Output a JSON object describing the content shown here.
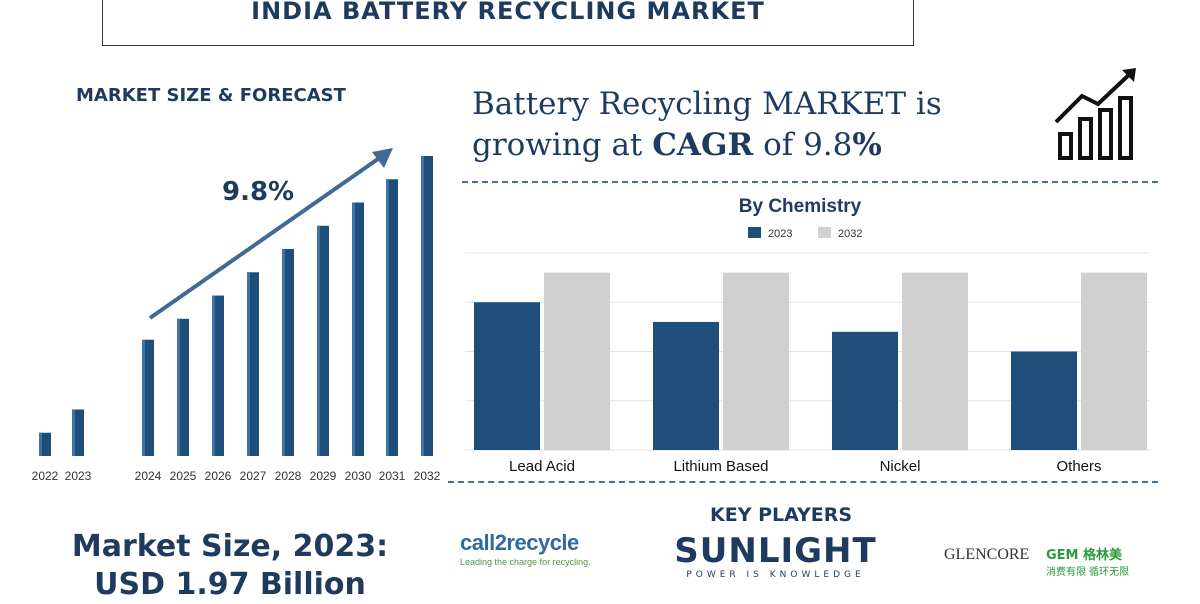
{
  "title": "INDIA BATTERY RECYCLING MARKET",
  "left_panel": {
    "heading": "MARKET SIZE & FORECAST",
    "growth_label": "9.8%",
    "market_size_line1": "Market Size, 2023:",
    "market_size_line2": "USD 1.97 Billion"
  },
  "headline": {
    "part1": "Battery Recycling MARKET is",
    "part2": "growing at",
    "bold": "CAGR",
    "part3": "of 9.8",
    "pct": "%"
  },
  "key_players": {
    "heading": "KEY PLAYERS",
    "call2recycle_main": "call2recycle",
    "call2recycle_tagline": "Leading the charge for recycling.",
    "sunlight_main": "SUNLIGHT",
    "sunlight_tagline": "POWER IS KNOWLEDGE",
    "glencore": "GLENCORE",
    "gem_main": "GEM 格林美",
    "gem_tagline": "消费有限 循环无限"
  },
  "colors": {
    "navy": "#1f4e7a",
    "gray": "#d0d0d0",
    "text": "#1f3a5f"
  },
  "icons": [
    "growth-chart-icon",
    "trend-arrow-icon"
  ],
  "chart_data": [
    {
      "type": "bar",
      "title": "MARKET SIZE & FORECAST",
      "categories": [
        "2022",
        "2023",
        "2024",
        "2025",
        "2026",
        "2027",
        "2028",
        "2029",
        "2030",
        "2031",
        "2032"
      ],
      "values": [
        1.0,
        2.0,
        5.0,
        5.9,
        6.9,
        7.9,
        8.9,
        9.9,
        10.9,
        11.9,
        12.9
      ],
      "annotation": "9.8%",
      "grid": false
    },
    {
      "type": "bar",
      "title": "By Chemistry",
      "categories": [
        "Lead Acid",
        "Lithium Based",
        "Nickel",
        "Others"
      ],
      "series": [
        {
          "name": "2023",
          "values": [
            3.0,
            2.6,
            2.4,
            2.0
          ]
        },
        {
          "name": "2032",
          "values": [
            3.6,
            3.6,
            3.6,
            3.6
          ]
        }
      ],
      "ylim": [
        0,
        4
      ],
      "legend": "top",
      "grid": true
    }
  ]
}
